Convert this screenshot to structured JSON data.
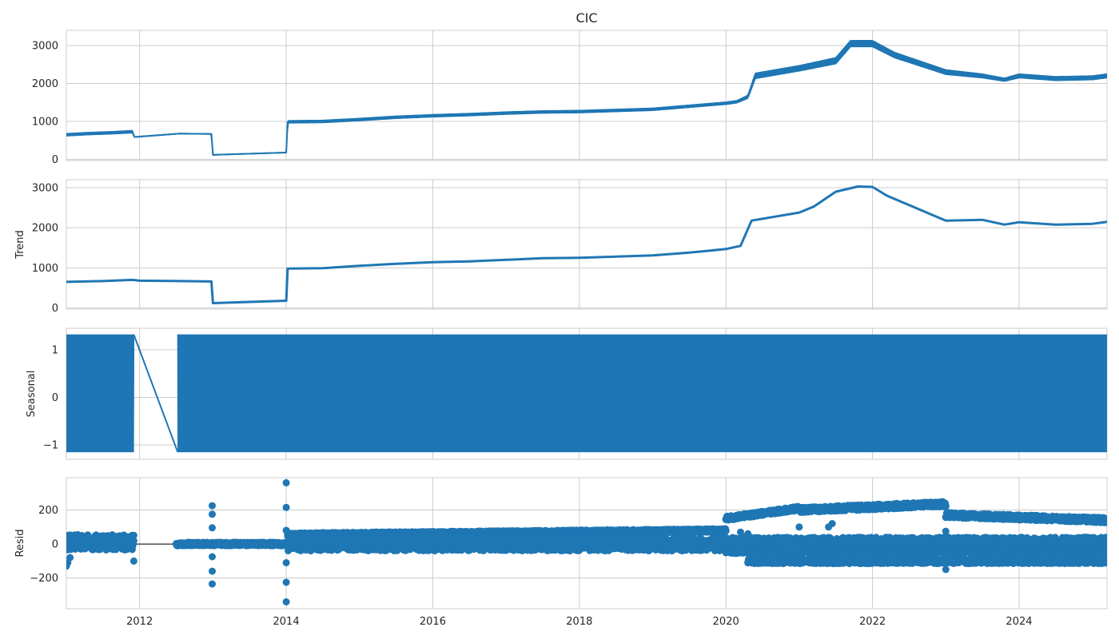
{
  "chart_data": {
    "type": "line",
    "title": "CIC",
    "grid": true,
    "colors": {
      "series": "#1f77b4",
      "grid": "#cccccc",
      "frame": "#cccccc",
      "text": "#262626",
      "zero_line": "#000000"
    },
    "x_range": [
      2011.0,
      2025.2
    ],
    "x_ticks": [
      2012,
      2014,
      2016,
      2018,
      2020,
      2022,
      2024
    ],
    "x_tick_labels": [
      "2012",
      "2014",
      "2016",
      "2018",
      "2020",
      "2022",
      "2024"
    ],
    "panels": [
      {
        "name": "observed",
        "ylabel": "",
        "ylim": [
          -30,
          3400
        ],
        "yticks": [
          0,
          1000,
          2000,
          3000
        ],
        "ytick_labels": [
          "0",
          "1000",
          "2000",
          "3000"
        ],
        "style": "band",
        "series": {
          "x": [
            2011.0,
            2011.3,
            2011.6,
            2011.9,
            2011.93,
            2012.55,
            2012.98,
            2013.0,
            2014.0,
            2014.02,
            2014.5,
            2015.0,
            2015.5,
            2016.0,
            2016.5,
            2017.0,
            2017.5,
            2018.0,
            2018.5,
            2019.0,
            2019.5,
            2020.0,
            2020.15,
            2020.3,
            2020.4,
            2021.0,
            2021.5,
            2021.7,
            2022.0,
            2022.3,
            2023.0,
            2023.5,
            2023.8,
            2024.0,
            2024.5,
            2025.0,
            2025.2
          ],
          "y": [
            650,
            680,
            700,
            730,
            590,
            680,
            670,
            120,
            180,
            990,
            1000,
            1050,
            1110,
            1150,
            1180,
            1220,
            1250,
            1260,
            1290,
            1320,
            1400,
            1480,
            1520,
            1650,
            2200,
            2400,
            2600,
            3050,
            3050,
            2750,
            2300,
            2200,
            2100,
            2200,
            2130,
            2150,
            2200
          ],
          "spread": [
            60,
            60,
            60,
            60,
            10,
            10,
            10,
            10,
            10,
            60,
            60,
            60,
            60,
            60,
            60,
            60,
            60,
            60,
            60,
            60,
            60,
            60,
            60,
            80,
            140,
            140,
            160,
            160,
            160,
            140,
            120,
            100,
            80,
            100,
            100,
            100,
            100
          ]
        }
      },
      {
        "name": "trend",
        "ylabel": "Trend",
        "ylim": [
          -30,
          3200
        ],
        "yticks": [
          0,
          1000,
          2000,
          3000
        ],
        "ytick_labels": [
          "0",
          "1000",
          "2000",
          "3000"
        ],
        "style": "line",
        "series": {
          "x": [
            2011.0,
            2011.5,
            2011.9,
            2012.0,
            2012.55,
            2012.98,
            2013.0,
            2014.0,
            2014.02,
            2014.5,
            2015.0,
            2015.5,
            2016.0,
            2016.5,
            2017.0,
            2017.5,
            2018.0,
            2018.5,
            2019.0,
            2019.5,
            2020.0,
            2020.2,
            2020.35,
            2021.0,
            2021.2,
            2021.5,
            2021.8,
            2022.0,
            2022.2,
            2023.0,
            2023.5,
            2023.8,
            2024.0,
            2024.5,
            2025.0,
            2025.2
          ],
          "y": [
            650,
            670,
            700,
            680,
            670,
            660,
            120,
            180,
            980,
            990,
            1050,
            1100,
            1140,
            1160,
            1200,
            1240,
            1250,
            1280,
            1310,
            1380,
            1470,
            1550,
            2180,
            2380,
            2530,
            2900,
            3030,
            3020,
            2800,
            2180,
            2200,
            2080,
            2140,
            2080,
            2100,
            2150
          ]
        }
      },
      {
        "name": "seasonal",
        "ylabel": "Seasonal",
        "ylim": [
          -1.3,
          1.45
        ],
        "yticks": [
          -1,
          0,
          1
        ],
        "ytick_labels": [
          "−1",
          "0",
          "1"
        ],
        "style": "oscillation",
        "amplitude_range": [
          -1.15,
          1.32
        ],
        "active_segments": [
          [
            2011.0,
            2011.92
          ],
          [
            2012.52,
            2025.2
          ]
        ],
        "bridge": {
          "x": [
            2011.92,
            2012.52
          ],
          "y": [
            1.32,
            -1.15
          ]
        }
      },
      {
        "name": "resid",
        "ylabel": "Resid",
        "ylim": [
          -380,
          390
        ],
        "yticks": [
          -200,
          0,
          200
        ],
        "ytick_labels": [
          "−200",
          "0",
          "200"
        ],
        "style": "scatter",
        "zero_segment": [
          2011.92,
          2012.5
        ],
        "bands": [
          {
            "x": [
              2011.0,
              2011.92
            ],
            "center": [
              10,
              10
            ],
            "spread": [
              45,
              45
            ]
          },
          {
            "x": [
              2012.5,
              2014.0
            ],
            "center": [
              0,
              0
            ],
            "spread": [
              10,
              10
            ]
          },
          {
            "x": [
              2014.02,
              2020.0
            ],
            "center": [
              55,
              80
            ],
            "spread": [
              10,
              10
            ]
          },
          {
            "x": [
              2014.02,
              2025.2
            ],
            "center": [
              0,
              0
            ],
            "spread": [
              40,
              40
            ]
          },
          {
            "x": [
              2020.0,
              2021.0
            ],
            "center": [
              150,
              210
            ],
            "spread": [
              12,
              12
            ]
          },
          {
            "x": [
              2021.0,
              2023.0
            ],
            "center": [
              200,
              235
            ],
            "spread": [
              15,
              15
            ]
          },
          {
            "x": [
              2023.0,
              2025.2
            ],
            "center": [
              170,
              140
            ],
            "spread": [
              15,
              15
            ]
          },
          {
            "x": [
              2020.0,
              2025.2
            ],
            "center": [
              -40,
              -40
            ],
            "spread": [
              15,
              15
            ]
          },
          {
            "x": [
              2020.3,
              2025.2
            ],
            "center": [
              -100,
              -100
            ],
            "spread": [
              15,
              15
            ]
          }
        ],
        "outliers": {
          "x": [
            2011.0,
            2011.02,
            2011.05,
            2011.92,
            2012.99,
            2012.99,
            2012.99,
            2012.99,
            2012.99,
            2012.99,
            2014.0,
            2014.0,
            2014.0,
            2014.0,
            2014.0,
            2014.0,
            2020.2,
            2020.3,
            2021.0,
            2021.4,
            2021.45,
            2023.0,
            2023.0,
            2024.0
          ],
          "y": [
            -130,
            -110,
            -80,
            -100,
            225,
            175,
            95,
            -75,
            -160,
            -235,
            360,
            215,
            80,
            -110,
            -225,
            -340,
            70,
            60,
            100,
            100,
            120,
            75,
            -150,
            170
          ]
        }
      }
    ]
  }
}
